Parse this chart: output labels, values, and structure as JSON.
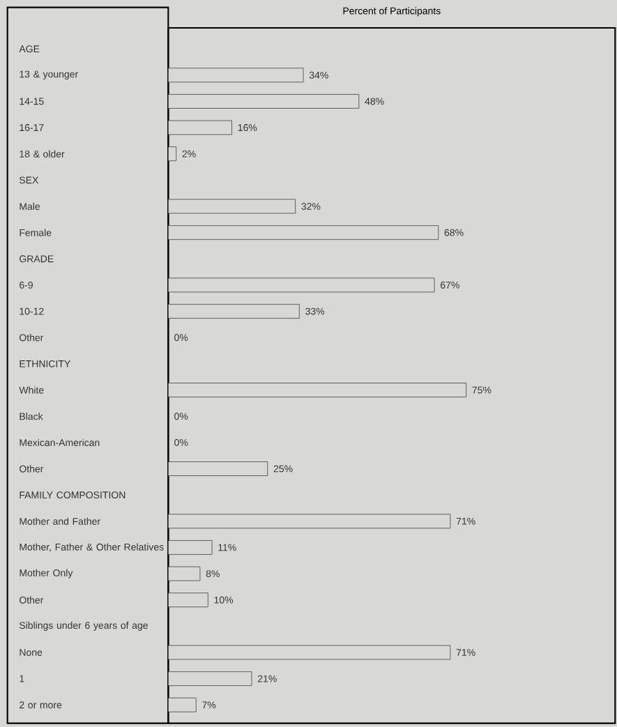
{
  "chart_data": {
    "type": "bar",
    "orientation": "horizontal",
    "title": "Percent of Participants",
    "categories": [
      "AGE",
      "13 & younger",
      "14-15",
      "16-17",
      "18 & older",
      "SEX",
      "Male",
      "Female",
      "GRADE",
      "6-9",
      "10-12",
      "Other",
      "ETHNICITY",
      "White",
      "Black",
      "Mexican-American",
      "Other",
      "FAMILY COMPOSITION",
      "Mother and Father",
      "Mother, Father & Other Relatives",
      "Mother Only",
      "Other",
      "Siblings under 6 years of age",
      "None",
      "1",
      "2 or more"
    ],
    "values": [
      null,
      34,
      48,
      16,
      2,
      null,
      32,
      68,
      null,
      67,
      33,
      0,
      null,
      75,
      0,
      0,
      25,
      null,
      71,
      11,
      8,
      10,
      null,
      71,
      21,
      7
    ],
    "value_labels": [
      null,
      "34%",
      "48%",
      "16%",
      "2%",
      null,
      "32%",
      "68%",
      null,
      "67%",
      "33%",
      "0%",
      null,
      "75%",
      "0%",
      "0%",
      "25%",
      null,
      "71%",
      "11%",
      "8%",
      "10%",
      null,
      "71%",
      "21%",
      "7%"
    ],
    "color": "#d8d8d4"
  }
}
